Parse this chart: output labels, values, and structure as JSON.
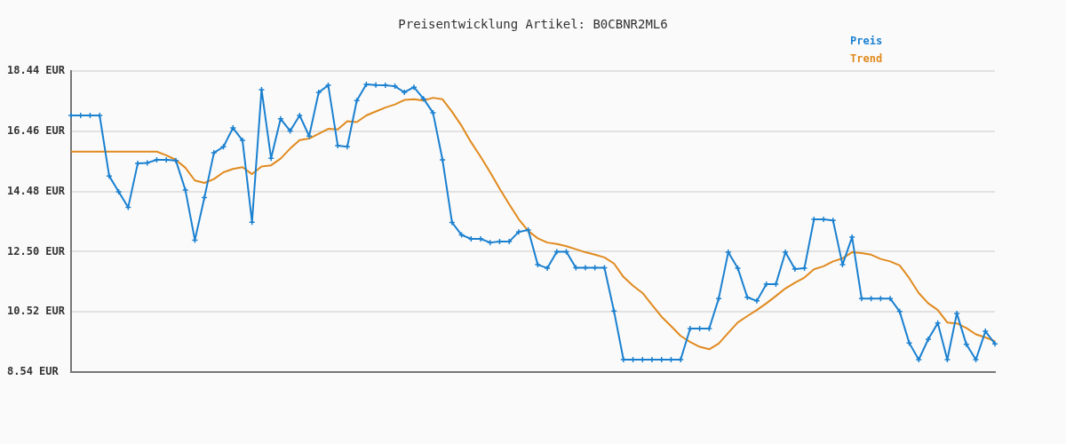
{
  "chart_data": {
    "type": "line",
    "title": "Preisentwicklung Artikel: B0CBNR2ML6",
    "categories": [
      null,
      null,
      null,
      null,
      null,
      null,
      null,
      null,
      null,
      null,
      null,
      null,
      null,
      null,
      null,
      null,
      null,
      null,
      null,
      null,
      null,
      null,
      null,
      null,
      null,
      null,
      null,
      null,
      null,
      null,
      null,
      null,
      null,
      null,
      null,
      null,
      null,
      null,
      null,
      null,
      null,
      null,
      null,
      null,
      null,
      null,
      null,
      null,
      null,
      null,
      null,
      null,
      null,
      null,
      null,
      null,
      null,
      null,
      null,
      null,
      null,
      null,
      null,
      null,
      null,
      null,
      null,
      null,
      null,
      null,
      null,
      null,
      null,
      null,
      null,
      null,
      null,
      null,
      null,
      null,
      null,
      null,
      null,
      null,
      null,
      null,
      null,
      null,
      null,
      null,
      null,
      null,
      null,
      null,
      null,
      null,
      null,
      null
    ],
    "series": [
      {
        "name": "Preis",
        "color": "#1a80d0",
        "values": [
          16.98,
          16.98,
          16.98,
          16.98,
          14.99,
          14.47,
          13.96,
          15.4,
          15.42,
          15.52,
          15.52,
          15.5,
          14.53,
          12.88,
          14.28,
          15.75,
          15.95,
          16.57,
          16.16,
          13.47,
          17.83,
          15.57,
          16.87,
          16.47,
          16.98,
          16.3,
          17.74,
          17.97,
          15.99,
          15.95,
          17.47,
          18.0,
          17.98,
          17.97,
          17.94,
          17.74,
          17.91,
          17.53,
          17.07,
          15.52,
          13.46,
          13.05,
          12.92,
          12.92,
          12.8,
          12.83,
          12.83,
          13.15,
          13.21,
          12.07,
          11.96,
          12.5,
          12.5,
          11.97,
          11.97,
          11.97,
          11.97,
          10.55,
          8.95,
          8.95,
          8.95,
          8.95,
          8.95,
          8.95,
          8.95,
          9.97,
          9.97,
          9.97,
          10.96,
          12.48,
          11.96,
          11.0,
          10.88,
          11.43,
          11.43,
          12.48,
          11.93,
          11.96,
          13.56,
          13.56,
          13.53,
          12.07,
          12.98,
          10.96,
          10.96,
          10.96,
          10.96,
          10.53,
          9.5,
          8.95,
          9.62,
          10.15,
          8.95,
          10.47,
          9.45,
          8.95,
          9.88,
          9.47
        ]
      },
      {
        "name": "Trend",
        "color": "#e08a1e",
        "marker": "none",
        "values": [
          15.79,
          15.79,
          15.79,
          15.79,
          15.79,
          15.79,
          15.79,
          15.79,
          15.79,
          15.79,
          15.67,
          15.52,
          15.26,
          14.84,
          14.76,
          14.89,
          15.11,
          15.22,
          15.28,
          15.05,
          15.3,
          15.34,
          15.56,
          15.89,
          16.17,
          16.22,
          16.38,
          16.54,
          16.52,
          16.79,
          16.76,
          16.98,
          17.11,
          17.24,
          17.34,
          17.49,
          17.51,
          17.47,
          17.56,
          17.51,
          17.1,
          16.64,
          16.1,
          15.62,
          15.11,
          14.57,
          14.06,
          13.57,
          13.18,
          12.94,
          12.8,
          12.75,
          12.68,
          12.58,
          12.48,
          12.4,
          12.31,
          12.11,
          11.67,
          11.38,
          11.14,
          10.75,
          10.36,
          10.05,
          9.73,
          9.53,
          9.37,
          9.29,
          9.48,
          9.83,
          10.17,
          10.38,
          10.58,
          10.8,
          11.04,
          11.29,
          11.48,
          11.65,
          11.92,
          12.02,
          12.18,
          12.28,
          12.48,
          12.45,
          12.4,
          12.26,
          12.18,
          12.05,
          11.63,
          11.14,
          10.8,
          10.58,
          10.17,
          10.14,
          9.99,
          9.78,
          9.68,
          9.56
        ]
      }
    ],
    "ylim": [
      8.54,
      18.44
    ],
    "yticks": [
      {
        "value": 8.54,
        "label": "8.54 EUR"
      },
      {
        "value": 10.52,
        "label": "10.52 EUR"
      },
      {
        "value": 12.5,
        "label": "12.50 EUR"
      },
      {
        "value": 14.48,
        "label": "14.48 EUR"
      },
      {
        "value": 16.46,
        "label": "16.46 EUR"
      },
      {
        "value": 18.44,
        "label": "18.44 EUR"
      }
    ],
    "grid": "y",
    "legend": "top right",
    "marker": "cross",
    "tick_labels": "y"
  }
}
